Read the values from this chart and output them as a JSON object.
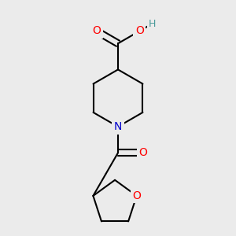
{
  "bg_color": "#ebebeb",
  "atom_colors": {
    "C": "#000000",
    "O": "#ff0000",
    "N": "#0000cc",
    "H": "#4a9a9a"
  },
  "bond_color": "#000000",
  "bond_width": 1.5,
  "figsize": [
    3.0,
    3.0
  ],
  "dpi": 100,
  "xlim": [
    0.05,
    0.95
  ],
  "ylim": [
    0.02,
    0.97
  ]
}
